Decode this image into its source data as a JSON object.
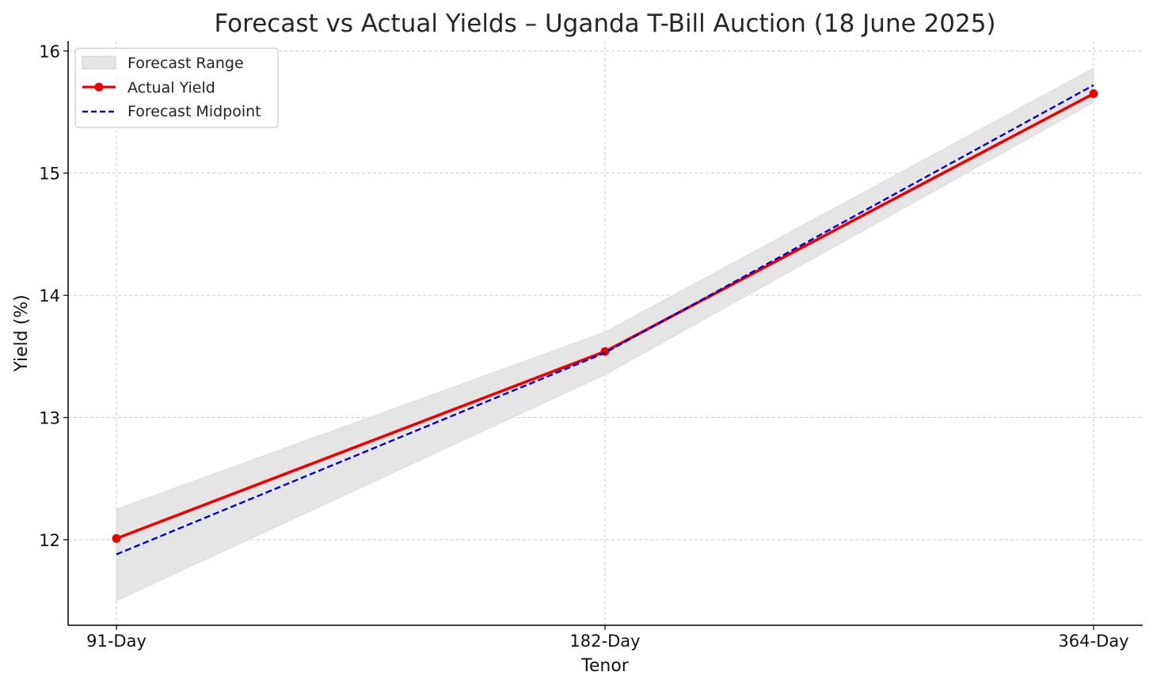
{
  "chart_data": {
    "type": "line",
    "title": "Forecast vs Actual Yields – Uganda T-Bill Auction (18 June 2025)",
    "xlabel": "Tenor",
    "ylabel": "Yield (%)",
    "categories": [
      "91-Day",
      "182-Day",
      "364-Day"
    ],
    "ylim": [
      11.3,
      16.08
    ],
    "yticks": [
      12,
      13,
      14,
      15,
      16
    ],
    "grid": true,
    "legend_position": "top-left",
    "series": [
      {
        "name": "Forecast Range",
        "kind": "band",
        "lower": [
          11.5,
          13.35,
          15.58
        ],
        "upper": [
          12.25,
          13.7,
          15.86
        ],
        "color": "#e5e5e5"
      },
      {
        "name": "Actual Yield",
        "kind": "line",
        "values": [
          12.01,
          13.54,
          15.65
        ],
        "color": "#ee0000",
        "markers": true
      },
      {
        "name": "Forecast Midpoint",
        "kind": "dashed",
        "values": [
          11.88,
          13.53,
          15.72
        ],
        "color": "#0000cc"
      }
    ]
  }
}
